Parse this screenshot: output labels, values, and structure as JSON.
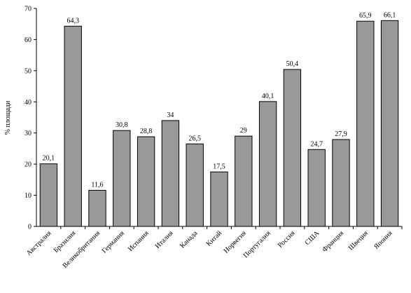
{
  "chart_data": {
    "type": "bar",
    "title": "",
    "xlabel": "",
    "ylabel": "% площади",
    "ylim": [
      0,
      70
    ],
    "yticks": [
      0,
      10,
      20,
      30,
      40,
      50,
      60,
      70
    ],
    "grid": false,
    "legend": "none",
    "bar_color": "#999999",
    "categories": [
      "Австралия",
      "Бразилия",
      "Великобритания",
      "Германия",
      "Испания",
      "Италия",
      "Канада",
      "Китай",
      "Норвегия",
      "Португалия",
      "Россия",
      "США",
      "Франция",
      "Швеция",
      "Япония"
    ],
    "values": [
      20.1,
      64.3,
      11.6,
      30.8,
      28.8,
      34,
      26.5,
      17.5,
      29,
      40.1,
      50.4,
      24.7,
      27.9,
      65.9,
      66.1
    ],
    "value_labels": [
      "20,1",
      "64,3",
      "11,6",
      "30,8",
      "28,8",
      "34",
      "26,5",
      "17,5",
      "29",
      "40,1",
      "50,4",
      "24,7",
      "27,9",
      "65,9",
      "66,1"
    ]
  }
}
